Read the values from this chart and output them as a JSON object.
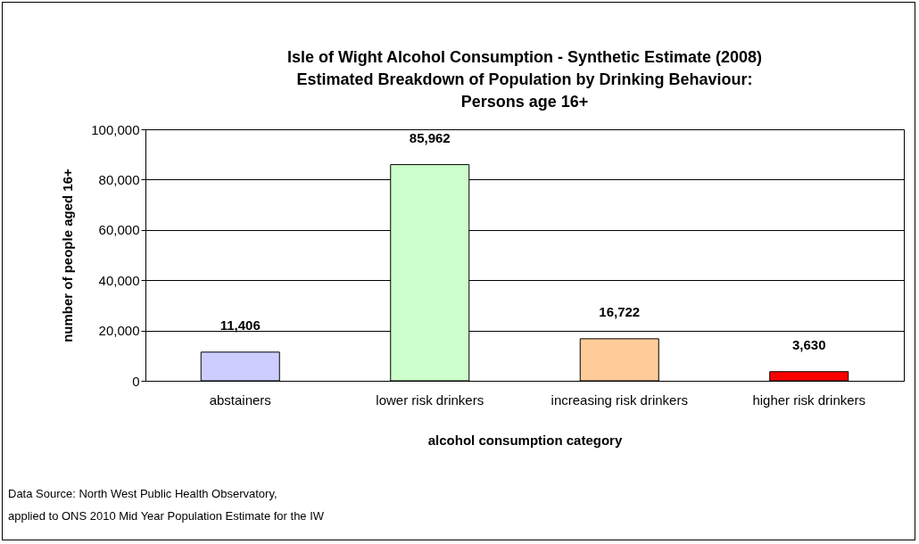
{
  "chart_data": {
    "type": "bar",
    "title": "Isle of Wight Alcohol Consumption - Synthetic Estimate (2008)\nEstimated Breakdown of Population by Drinking Behaviour:\nPersons age 16+",
    "xlabel": "alcohol consumption category",
    "ylabel": "number of people aged 16+",
    "categories": [
      "abstainers",
      "lower risk drinkers",
      "increasing risk drinkers",
      "higher risk drinkers"
    ],
    "values": [
      11406,
      85962,
      16722,
      3630
    ],
    "colors": [
      "#ccccff",
      "#ccffcc",
      "#ffcc99",
      "#ff0000"
    ],
    "value_labels": [
      "11,406",
      "85,962",
      "16,722",
      "3,630"
    ],
    "ylim": [
      0,
      100000
    ],
    "yticks": [
      0,
      {
        "value": 20000,
        "label": "20,000"
      },
      {
        "value": 40000,
        "label": "40,000"
      },
      {
        "value": 60000,
        "label": "60,000"
      },
      {
        "value": 80000,
        "label": "80,000"
      },
      {
        "value": 100000,
        "label": "100,000"
      }
    ],
    "grid": "y",
    "annotations": [
      "Data Source: North West Public Health Observatory,",
      "applied to ONS 2010 Mid Year Population Estimate for the IW"
    ]
  }
}
